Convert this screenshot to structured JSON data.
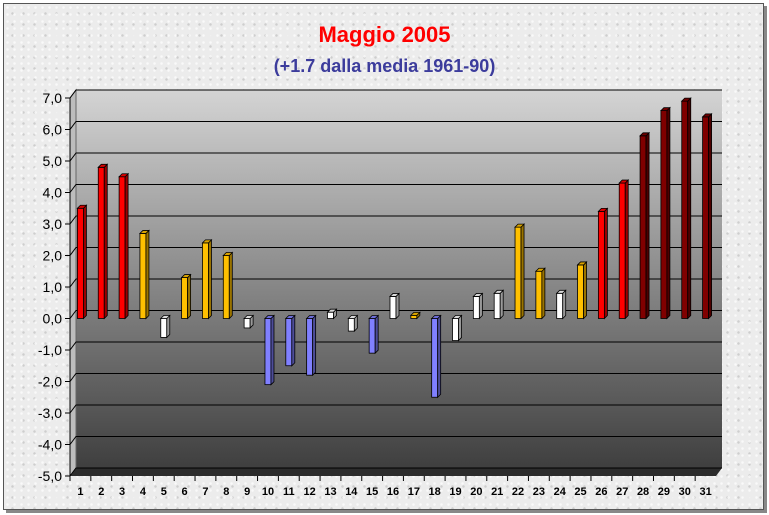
{
  "chart_data": {
    "type": "bar",
    "title": "Maggio 2005",
    "subtitle": "(+1.7 dalla media 1961-90)",
    "xlabel": "",
    "ylabel": "",
    "ylim": [
      -5,
      7
    ],
    "y_ticks": [
      "7,0",
      "6,0",
      "5,0",
      "4,0",
      "3,0",
      "2,0",
      "1,0",
      "0,0",
      "-1,0",
      "-2,0",
      "-3,0",
      "-4,0",
      "-5,0"
    ],
    "categories": [
      "1",
      "2",
      "3",
      "4",
      "5",
      "6",
      "7",
      "8",
      "9",
      "10",
      "11",
      "12",
      "13",
      "14",
      "15",
      "16",
      "17",
      "18",
      "19",
      "20",
      "21",
      "22",
      "23",
      "24",
      "25",
      "26",
      "27",
      "28",
      "29",
      "30",
      "31"
    ],
    "values": [
      3.5,
      4.8,
      4.5,
      2.7,
      -0.6,
      1.3,
      2.4,
      2.0,
      -0.3,
      -2.1,
      -1.5,
      -1.8,
      0.2,
      -0.4,
      -1.1,
      0.7,
      0.1,
      -2.5,
      -0.7,
      0.7,
      0.8,
      2.9,
      1.5,
      0.8,
      1.7,
      3.4,
      4.3,
      5.8,
      6.6,
      6.9,
      6.4
    ],
    "bar_colors": [
      "#ff0000",
      "#ff0000",
      "#ff0000",
      "#ffc000",
      "#ffffff",
      "#ffc000",
      "#ffc000",
      "#ffc000",
      "#ffffff",
      "#8080ff",
      "#8080ff",
      "#8080ff",
      "#ffffff",
      "#ffffff",
      "#8080ff",
      "#ffffff",
      "#ffc000",
      "#8080ff",
      "#ffffff",
      "#ffffff",
      "#ffffff",
      "#ffc000",
      "#ffc000",
      "#ffffff",
      "#ffc000",
      "#ff0000",
      "#ff0000",
      "#800000",
      "#800000",
      "#800000",
      "#800000"
    ],
    "grid": true,
    "legend": "none"
  }
}
